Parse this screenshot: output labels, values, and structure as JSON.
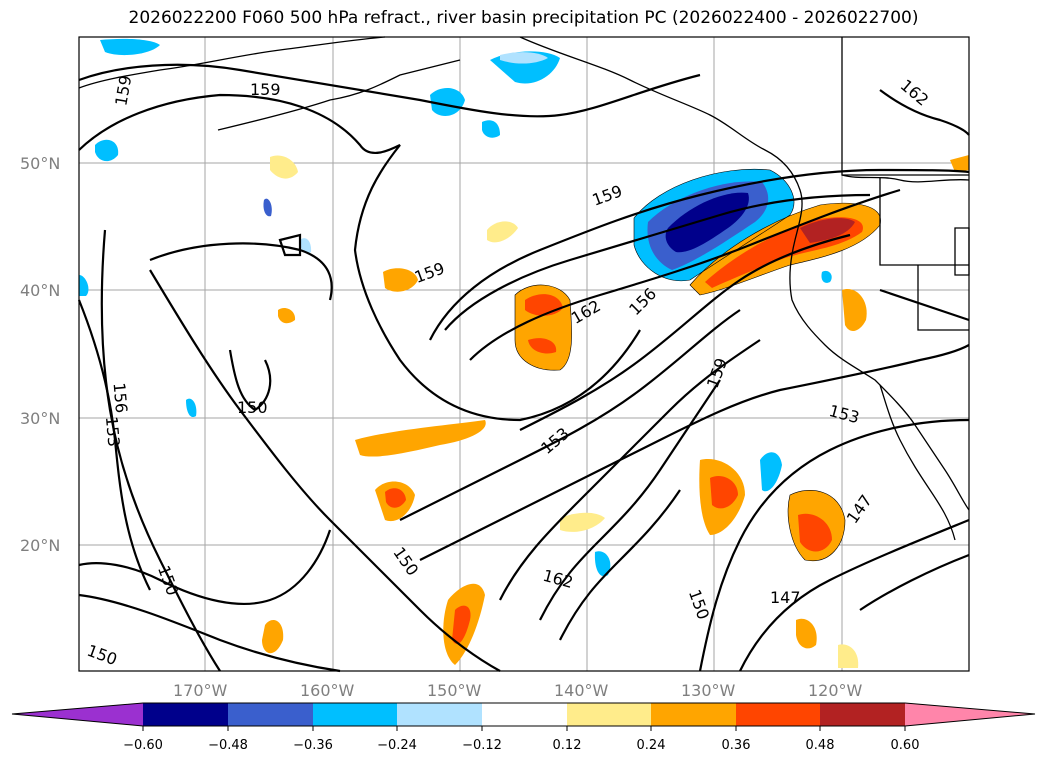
{
  "title": "2026022200 F060 500 hPa refract., river basin precipitation PC (2026022400 - 2026022700)",
  "map": {
    "lat_labels": [
      "50°N",
      "40°N",
      "30°N",
      "20°N"
    ],
    "lon_labels": [
      "170°W",
      "160°W",
      "150°W",
      "140°W",
      "130°W",
      "120°W"
    ],
    "contour_labels": [
      "159",
      "159",
      "162",
      "159",
      "159",
      "162",
      "156",
      "159",
      "150",
      "156",
      "153",
      "153",
      "153",
      "150",
      "150",
      "162",
      "150",
      "147",
      "147",
      "150"
    ]
  },
  "colorbar": {
    "ticks": [
      "−0.60",
      "−0.48",
      "−0.36",
      "−0.24",
      "−0.12",
      "0.12",
      "0.24",
      "0.36",
      "0.48",
      "0.60"
    ],
    "colors": [
      "#9b30d0",
      "#00008b",
      "#3a5fcd",
      "#00bfff",
      "#b0e2ff",
      "#ffffff",
      "#ffec8b",
      "#ffa500",
      "#ff4500",
      "#b22222",
      "#ff85aa"
    ]
  },
  "colors": {
    "land": "#ffffff",
    "grid": "#a6a6a6",
    "contour": "#000000"
  }
}
